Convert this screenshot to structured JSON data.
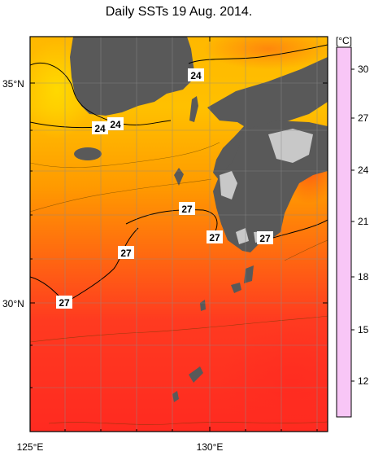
{
  "title": "Daily SSTs 19 Aug. 2014.",
  "map": {
    "lon_labels": [
      "125°E",
      "130°E"
    ],
    "lat_labels": [
      "35°N",
      "30°N"
    ],
    "contour_labels": [
      "24",
      "24",
      "24",
      "27",
      "27",
      "27",
      "27",
      "27"
    ]
  },
  "colorbar": {
    "unit": "[°C]",
    "ticks": [
      "30",
      "27",
      "24",
      "21",
      "18",
      "15",
      "12"
    ],
    "stops": [
      "#f8c6f6",
      "#ff0040",
      "#ff4010",
      "#ff8a00",
      "#ffc800",
      "#f2e400",
      "#b6f07a",
      "#62f0b8",
      "#14e6e0",
      "#10a6f0",
      "#2060f0",
      "#2a1ad8",
      "#1a00c8"
    ]
  },
  "colors": {
    "land": "#595959",
    "cloud_mask": "#c8c8c8",
    "sea_warm": "#ff3320",
    "sea_mid": "#ff8a00",
    "sea_cool": "#ffd000"
  }
}
